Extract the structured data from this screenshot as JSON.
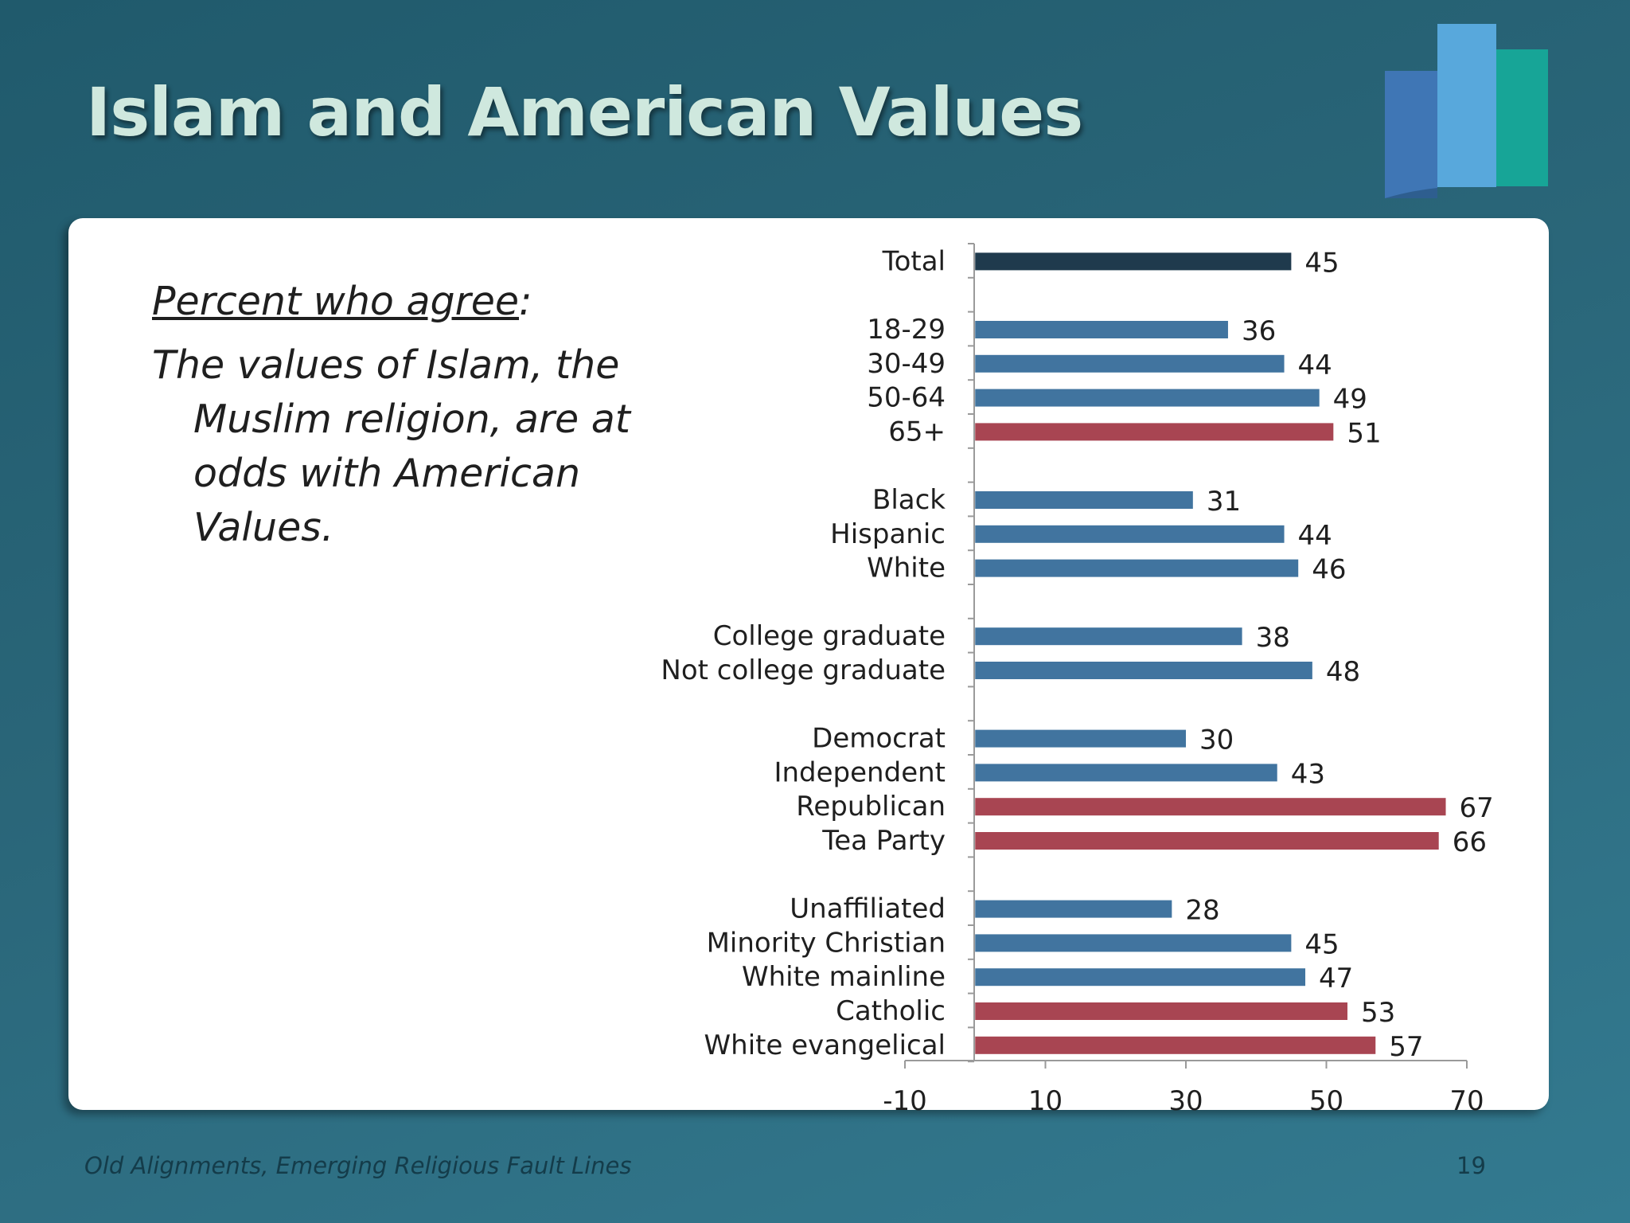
{
  "slide": {
    "title": "Islam and American Values",
    "prompt_label": "Percent who agree",
    "prompt_colon": ":",
    "statement": "The values of Islam, the Muslim religion, are at odds with American Values.",
    "footer": "Old Alignments, Emerging Religious Fault Lines",
    "page_number": "19"
  },
  "colors": {
    "total": "#1f3a4d",
    "below_total": "#41749f",
    "above_total": "#a84552",
    "logo": [
      "#3f76b5",
      "#58a8dc",
      "#17a597"
    ]
  },
  "chart_data": {
    "type": "bar",
    "orientation": "horizontal",
    "categories": [
      "Total",
      "18-29",
      "30-49",
      "50-64",
      "65+",
      "Black",
      "Hispanic",
      "White",
      "College graduate",
      "Not college graduate",
      "Democrat",
      "Independent",
      "Republican",
      "Tea Party",
      "Unaffiliated",
      "Minority Christian",
      "White mainline",
      "Catholic",
      "White evangelical"
    ],
    "groups": [
      {
        "categories": [
          "Total"
        ],
        "values": [
          45
        ]
      },
      {
        "categories": [
          "18-29",
          "30-49",
          "50-64",
          "65+"
        ],
        "values": [
          36,
          44,
          49,
          51
        ]
      },
      {
        "categories": [
          "Black",
          "Hispanic",
          "White"
        ],
        "values": [
          31,
          44,
          46
        ]
      },
      {
        "categories": [
          "College graduate",
          "Not college graduate"
        ],
        "values": [
          38,
          48
        ]
      },
      {
        "categories": [
          "Democrat",
          "Independent",
          "Republican",
          "Tea Party"
        ],
        "values": [
          30,
          43,
          67,
          66
        ]
      },
      {
        "categories": [
          "Unaffiliated",
          "Minority Christian",
          "White mainline",
          "Catholic",
          "White evangelical"
        ],
        "values": [
          28,
          45,
          47,
          53,
          57
        ]
      }
    ],
    "values": [
      45,
      36,
      44,
      49,
      51,
      31,
      44,
      46,
      38,
      48,
      30,
      43,
      67,
      66,
      28,
      45,
      47,
      53,
      57
    ],
    "bar_color_class": [
      "total",
      "below_total",
      "below_total",
      "below_total",
      "above_total",
      "below_total",
      "below_total",
      "below_total",
      "below_total",
      "below_total",
      "below_total",
      "below_total",
      "above_total",
      "above_total",
      "below_total",
      "below_total",
      "below_total",
      "above_total",
      "above_total"
    ],
    "xlim": [
      -10,
      70
    ],
    "x_ticks": [
      "-10",
      "10",
      "30",
      "50",
      "70"
    ],
    "grid": false,
    "legend": "none"
  }
}
